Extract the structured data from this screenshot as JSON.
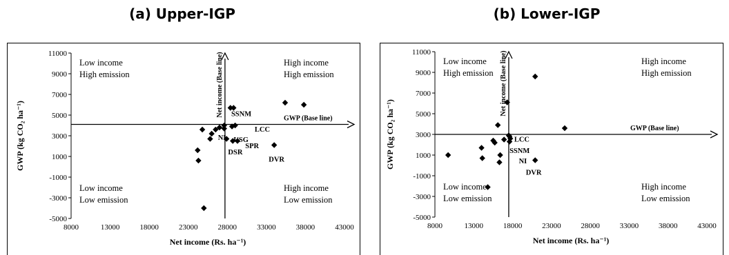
{
  "chart_data": [
    {
      "type": "scatter",
      "title": "(a) Upper-IGP",
      "xlabel": "Net  income (Rs. ha⁻¹)",
      "ylabel": "GWP (kg CO₂ ha⁻¹)",
      "xlim": [
        8000,
        43000
      ],
      "ylim": [
        -5000,
        11000
      ],
      "xticks": [
        8000,
        13000,
        18000,
        23000,
        28000,
        33000,
        38000,
        43000
      ],
      "yticks": [
        11000,
        9000,
        7000,
        5000,
        3000,
        1000,
        -1000,
        -3000,
        -5000
      ],
      "baseline_x": 27700,
      "baseline_y": 4100,
      "baseline_x_label": "Net income (Base line)",
      "baseline_y_label": "GWP (Base line)",
      "quadrant_labels": [
        {
          "lines": [
            "Low income",
            "High emission"
          ],
          "position": "top-left"
        },
        {
          "lines": [
            "High income",
            "High emission"
          ],
          "position": "top-right"
        },
        {
          "lines": [
            "Low income",
            "Low emission"
          ],
          "position": "bottom-left"
        },
        {
          "lines": [
            "High income",
            "Low emission"
          ],
          "position": "bottom-right"
        }
      ],
      "points": [
        {
          "x": 24800,
          "y": 3600
        },
        {
          "x": 26000,
          "y": 3200
        },
        {
          "x": 25800,
          "y": 2700
        },
        {
          "x": 26500,
          "y": 3600
        },
        {
          "x": 27000,
          "y": 3800
        },
        {
          "x": 27600,
          "y": 3700
        },
        {
          "x": 27600,
          "y": 4000
        },
        {
          "x": 28600,
          "y": 3900
        },
        {
          "x": 29000,
          "y": 4000
        },
        {
          "x": 28400,
          "y": 5700
        },
        {
          "x": 28800,
          "y": 5700
        },
        {
          "x": 27900,
          "y": 2700
        },
        {
          "x": 28700,
          "y": 2500
        },
        {
          "x": 29300,
          "y": 2500
        },
        {
          "x": 24200,
          "y": 1600
        },
        {
          "x": 24300,
          "y": 600
        },
        {
          "x": 34000,
          "y": 2100
        },
        {
          "x": 35400,
          "y": 6200
        },
        {
          "x": 37800,
          "y": 6000
        },
        {
          "x": 25000,
          "y": -4000
        }
      ],
      "annotations": [
        {
          "text": "SSNM",
          "x": 28500,
          "y": 4900
        },
        {
          "text": "LCC",
          "x": 31500,
          "y": 3400
        },
        {
          "text": "NI",
          "x": 26800,
          "y": 2600
        },
        {
          "text": "USG",
          "x": 28800,
          "y": 2400
        },
        {
          "text": "SPR",
          "x": 30300,
          "y": 1800
        },
        {
          "text": "DSR",
          "x": 28100,
          "y": 1200
        },
        {
          "text": "DVR",
          "x": 33300,
          "y": 500
        }
      ]
    },
    {
      "type": "scatter",
      "title": "(b) Lower-IGP",
      "xlabel": "Net  income (Rs. ha⁻¹)",
      "ylabel": "GWP (kg CO₂ ha⁻¹)",
      "xlim": [
        8000,
        43000
      ],
      "ylim": [
        -5000,
        11000
      ],
      "xticks": [
        8000,
        13000,
        18000,
        23000,
        28000,
        33000,
        38000,
        43000
      ],
      "yticks": [
        11000,
        9000,
        7000,
        5000,
        3000,
        1000,
        -1000,
        -3000,
        -5000
      ],
      "baseline_x": 17500,
      "baseline_y": 3000,
      "baseline_x_label": "Net income (Base line)",
      "baseline_y_label": "GWP (Base line)",
      "quadrant_labels": [
        {
          "lines": [
            "Low income",
            "High emission"
          ],
          "position": "top-left"
        },
        {
          "lines": [
            "High income",
            "High emission"
          ],
          "position": "top-right"
        },
        {
          "lines": [
            "Low income",
            "Low emission"
          ],
          "position": "bottom-left"
        },
        {
          "lines": [
            "High income",
            "Low emission"
          ],
          "position": "bottom-right"
        }
      ],
      "points": [
        {
          "x": 9700,
          "y": 1000
        },
        {
          "x": 14000,
          "y": 1700
        },
        {
          "x": 14100,
          "y": 700
        },
        {
          "x": 14800,
          "y": -2100
        },
        {
          "x": 15500,
          "y": 2400
        },
        {
          "x": 15700,
          "y": 2200
        },
        {
          "x": 16100,
          "y": 3900
        },
        {
          "x": 16400,
          "y": 1000
        },
        {
          "x": 16300,
          "y": 300
        },
        {
          "x": 16900,
          "y": 2500
        },
        {
          "x": 17300,
          "y": 6100
        },
        {
          "x": 17500,
          "y": 2900
        },
        {
          "x": 17600,
          "y": 2800
        },
        {
          "x": 17700,
          "y": 2600
        },
        {
          "x": 17600,
          "y": 2300
        },
        {
          "x": 20900,
          "y": 8600
        },
        {
          "x": 20900,
          "y": 500
        },
        {
          "x": 24700,
          "y": 3600
        }
      ],
      "annotations": [
        {
          "text": "LCC",
          "x": 18200,
          "y": 2300
        },
        {
          "text": "SSNM",
          "x": 17600,
          "y": 1200
        },
        {
          "text": "NI",
          "x": 18800,
          "y": 200
        },
        {
          "text": "DVR",
          "x": 19700,
          "y": -900
        }
      ]
    }
  ]
}
